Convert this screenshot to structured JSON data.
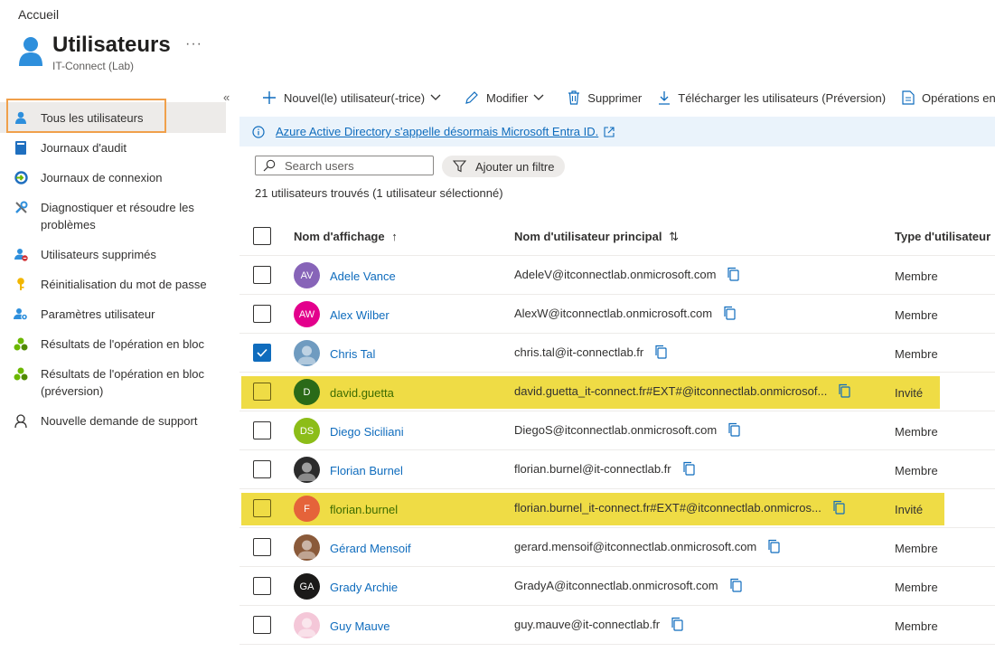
{
  "breadcrumb": "Accueil",
  "header": {
    "title": "Utilisateurs",
    "subtitle": "IT-Connect (Lab)",
    "more": "···"
  },
  "sidebar": {
    "collapse": "«",
    "items": [
      {
        "label": "Tous les utilisateurs",
        "icon": "user-icon"
      },
      {
        "label": "Journaux d'audit",
        "icon": "book-icon"
      },
      {
        "label": "Journaux de connexion",
        "icon": "signin-log-icon"
      },
      {
        "label": "Diagnostiquer et résoudre les problèmes",
        "icon": "wrench-icon"
      },
      {
        "label": "Utilisateurs supprimés",
        "icon": "deleted-user-icon"
      },
      {
        "label": "Réinitialisation du mot de passe",
        "icon": "key-icon"
      },
      {
        "label": "Paramètres utilisateur",
        "icon": "user-settings-icon"
      },
      {
        "label": "Résultats de l'opération en bloc",
        "icon": "bulk-icon"
      },
      {
        "label": "Résultats de l'opération en bloc (préversion)",
        "icon": "bulk-icon"
      },
      {
        "label": "Nouvelle demande de support",
        "icon": "support-icon"
      }
    ]
  },
  "toolbar": {
    "new_user": "Nouvel(le) utilisateur(-trice)",
    "edit": "Modifier",
    "delete": "Supprimer",
    "download": "Télécharger les utilisateurs (Préversion)",
    "bulk": "Opérations en bloc"
  },
  "info": {
    "text": "Azure Active Directory s'appelle désormais Microsoft Entra ID."
  },
  "search": {
    "placeholder": "Search users",
    "value": ""
  },
  "filter": {
    "label": "Ajouter un filtre"
  },
  "count": "21 utilisateurs trouvés (1 utilisateur sélectionné)",
  "table": {
    "columns": [
      "Nom d'affichage",
      "Nom d'utilisateur principal",
      "Type d'utilisateur"
    ],
    "sort_display": "↑",
    "sort_upn": "⇅",
    "rows": [
      {
        "name": "Adele Vance",
        "initials": "AV",
        "upn": "AdeleV@itconnectlab.onmicrosoft.com",
        "type": "Membre",
        "avatar_color": "#8764b8",
        "checked": false,
        "highlight": false
      },
      {
        "name": "Alex Wilber",
        "initials": "AW",
        "upn": "AlexW@itconnectlab.onmicrosoft.com",
        "type": "Membre",
        "avatar_color": "#e3008c",
        "checked": false,
        "highlight": false
      },
      {
        "name": "Chris Tal",
        "initials": "",
        "upn": "chris.tal@it-connectlab.fr",
        "type": "Membre",
        "avatar_color": "#6f9bc0",
        "checked": true,
        "highlight": false
      },
      {
        "name": "david.guetta",
        "initials": "D",
        "upn": "david.guetta_it-connect.fr#EXT#@itconnectlab.onmicrosof...",
        "type": "Invité",
        "avatar_color": "#2a6a18",
        "checked": false,
        "highlight": true
      },
      {
        "name": "Diego Siciliani",
        "initials": "DS",
        "upn": "DiegoS@itconnectlab.onmicrosoft.com",
        "type": "Membre",
        "avatar_color": "#8cbd18",
        "checked": false,
        "highlight": false
      },
      {
        "name": "Florian Burnel",
        "initials": "",
        "upn": "florian.burnel@it-connectlab.fr",
        "type": "Membre",
        "avatar_color": "#2b2b2b",
        "checked": false,
        "highlight": false
      },
      {
        "name": "florian.burnel",
        "initials": "F",
        "upn": "florian.burnel_it-connect.fr#EXT#@itconnectlab.onmicros...",
        "type": "Invité",
        "avatar_color": "#e5633a",
        "checked": false,
        "highlight": true
      },
      {
        "name": "Gérard Mensoif",
        "initials": "",
        "upn": "gerard.mensoif@itconnectlab.onmicrosoft.com",
        "type": "Membre",
        "avatar_color": "#8a5a3a",
        "checked": false,
        "highlight": false
      },
      {
        "name": "Grady Archie",
        "initials": "GA",
        "upn": "GradyA@itconnectlab.onmicrosoft.com",
        "type": "Membre",
        "avatar_color": "#1b1a19",
        "checked": false,
        "highlight": false
      },
      {
        "name": "Guy Mauve",
        "initials": "",
        "upn": "guy.mauve@it-connectlab.fr",
        "type": "Membre",
        "avatar_color": "#f4c7d8",
        "checked": false,
        "highlight": false
      }
    ]
  },
  "colors": {
    "accent": "#0f6cbd",
    "highlight": "#efdc45",
    "focus": "#f0a04b"
  }
}
